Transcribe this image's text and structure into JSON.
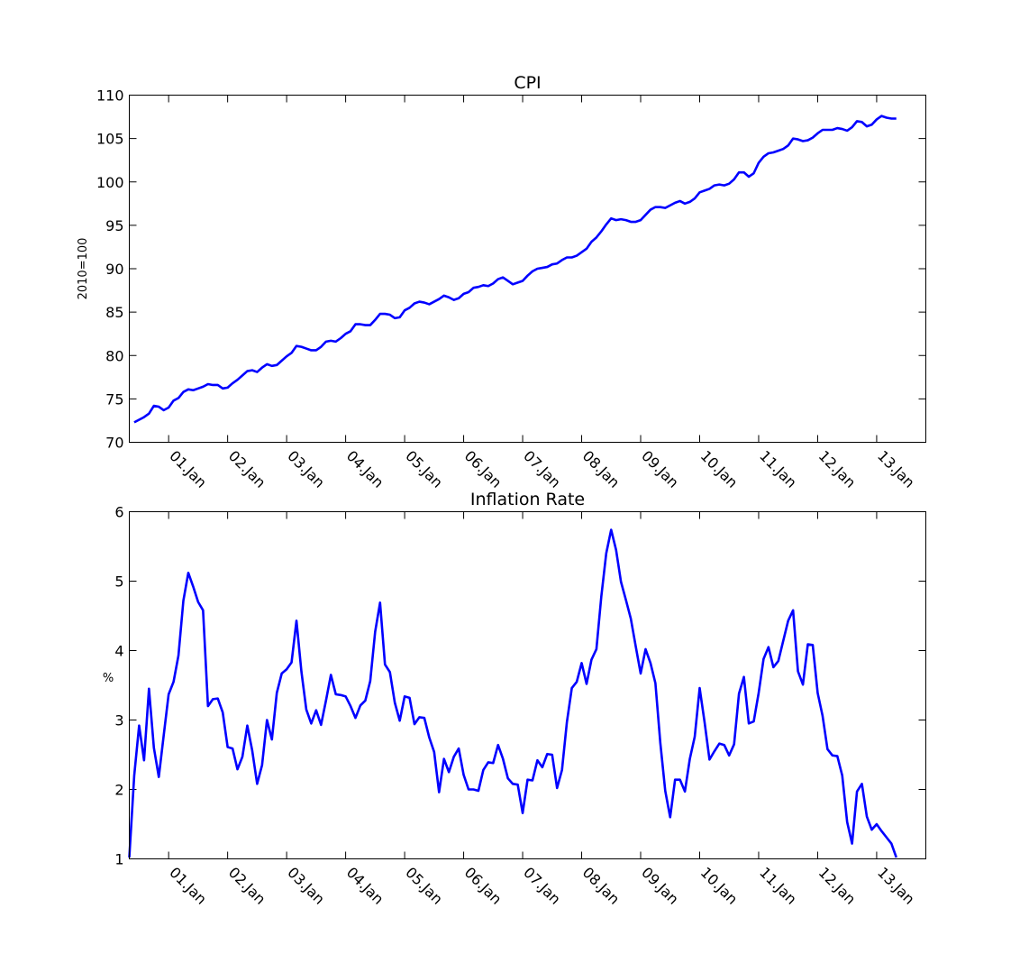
{
  "chart_data": [
    {
      "type": "line",
      "title": "CPI",
      "ylabel": "2010=100",
      "xlabel": "",
      "ylim": [
        70,
        110
      ],
      "xlim": [
        "2000-05",
        "2013-11"
      ],
      "y_ticks": [
        70,
        75,
        80,
        85,
        90,
        95,
        100,
        105,
        110
      ],
      "x_tick_labels": [
        "01.Jan",
        "02.Jan",
        "03.Jan",
        "04.Jan",
        "05.Jan",
        "06.Jan",
        "07.Jan",
        "08.Jan",
        "09.Jan",
        "10.Jan",
        "11.Jan",
        "12.Jan",
        "13.Jan"
      ],
      "grid": false,
      "line_color": "#0000ff",
      "series": [
        {
          "x_start": "2000-06",
          "frequency": "monthly",
          "values": [
            72.3,
            72.6,
            72.9,
            73.3,
            74.2,
            74.1,
            73.7,
            74.0,
            74.8,
            75.1,
            75.8,
            76.1,
            76.0,
            76.2,
            76.4,
            76.7,
            76.6,
            76.6,
            76.2,
            76.3,
            76.8,
            77.2,
            77.7,
            78.2,
            78.3,
            78.1,
            78.6,
            79.0,
            78.8,
            78.9,
            79.4,
            79.9,
            80.3,
            81.1,
            81.0,
            80.8,
            80.6,
            80.6,
            81.0,
            81.6,
            81.7,
            81.6,
            82.0,
            82.5,
            82.8,
            83.6,
            83.6,
            83.5,
            83.5,
            84.1,
            84.8,
            84.8,
            84.7,
            84.3,
            84.4,
            85.2,
            85.5,
            86.0,
            86.2,
            86.1,
            85.9,
            86.2,
            86.5,
            86.9,
            86.7,
            86.4,
            86.6,
            87.1,
            87.3,
            87.8,
            87.9,
            88.1,
            88.0,
            88.3,
            88.8,
            89.0,
            88.6,
            88.2,
            88.4,
            88.6,
            89.2,
            89.7,
            90.0,
            90.1,
            90.2,
            90.5,
            90.6,
            91.0,
            91.3,
            91.3,
            91.5,
            91.9,
            92.3,
            93.1,
            93.6,
            94.3,
            95.1,
            95.8,
            95.6,
            95.7,
            95.6,
            95.4,
            95.4,
            95.6,
            96.2,
            96.8,
            97.1,
            97.1,
            97.0,
            97.3,
            97.6,
            97.8,
            97.5,
            97.7,
            98.1,
            98.8,
            99.0,
            99.2,
            99.6,
            99.7,
            99.6,
            99.8,
            100.3,
            101.1,
            101.1,
            100.6,
            101.0,
            102.2,
            102.9,
            103.3,
            103.4,
            103.6,
            103.8,
            104.2,
            105.0,
            104.9,
            104.7,
            104.8,
            105.1,
            105.6,
            106.0,
            106.0,
            106.0,
            106.2,
            106.1,
            105.9,
            106.3,
            107.0,
            106.9,
            106.4,
            106.6,
            107.2,
            107.6,
            107.4,
            107.3,
            107.3
          ]
        }
      ]
    },
    {
      "type": "line",
      "title": "Inflation Rate",
      "ylabel": "%",
      "xlabel": "",
      "ylim": [
        1,
        6
      ],
      "xlim": [
        "2000-05",
        "2013-11"
      ],
      "y_ticks": [
        1,
        2,
        3,
        4,
        5,
        6
      ],
      "x_tick_labels": [
        "01.Jan",
        "02.Jan",
        "03.Jan",
        "04.Jan",
        "05.Jan",
        "06.Jan",
        "07.Jan",
        "08.Jan",
        "09.Jan",
        "10.Jan",
        "11.Jan",
        "12.Jan",
        "13.Jan"
      ],
      "grid": false,
      "line_color": "#0000ff",
      "series": [
        {
          "x_start": "2000-05",
          "frequency": "monthly",
          "values": [
            1.02,
            2.2,
            2.92,
            2.42,
            3.45,
            2.6,
            2.18,
            2.78,
            3.37,
            3.55,
            3.93,
            4.72,
            5.12,
            4.92,
            4.7,
            4.58,
            3.2,
            3.3,
            3.31,
            3.11,
            2.61,
            2.59,
            2.29,
            2.47,
            2.92,
            2.56,
            2.08,
            2.35,
            3.0,
            2.72,
            3.39,
            3.67,
            3.73,
            3.83,
            4.43,
            3.7,
            3.15,
            2.95,
            3.14,
            2.93,
            3.28,
            3.65,
            3.37,
            3.36,
            3.34,
            3.2,
            3.03,
            3.21,
            3.28,
            3.56,
            4.27,
            4.69,
            3.8,
            3.69,
            3.25,
            2.99,
            3.34,
            3.32,
            2.94,
            3.04,
            3.03,
            2.75,
            2.54,
            1.96,
            2.44,
            2.25,
            2.47,
            2.59,
            2.21,
            2.0,
            2.0,
            1.98,
            2.28,
            2.39,
            2.38,
            2.64,
            2.44,
            2.16,
            2.08,
            2.07,
            1.66,
            2.14,
            2.13,
            2.42,
            2.32,
            2.51,
            2.5,
            2.02,
            2.28,
            2.97,
            3.46,
            3.55,
            3.82,
            3.52,
            3.87,
            4.02,
            4.78,
            5.4,
            5.74,
            5.45,
            4.99,
            4.73,
            4.46,
            4.06,
            3.67,
            4.02,
            3.82,
            3.53,
            2.67,
            1.98,
            1.6,
            2.14,
            2.14,
            1.97,
            2.44,
            2.76,
            3.46,
            2.97,
            2.43,
            2.55,
            2.66,
            2.64,
            2.49,
            2.65,
            3.38,
            3.62,
            2.95,
            2.98,
            3.39,
            3.88,
            4.05,
            3.76,
            3.85,
            4.14,
            4.43,
            4.58,
            3.7,
            3.51,
            4.09,
            4.08,
            3.39,
            3.06,
            2.58,
            2.49,
            2.48,
            2.2,
            1.53,
            1.22,
            1.97,
            2.08,
            1.61,
            1.42,
            1.5,
            1.4,
            1.31,
            1.22,
            1.02
          ]
        }
      ]
    }
  ]
}
